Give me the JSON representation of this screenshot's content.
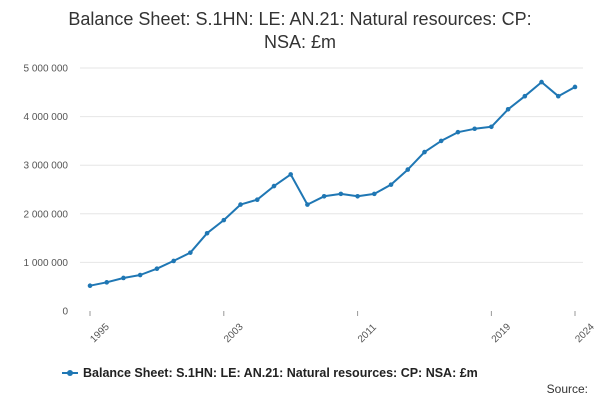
{
  "colors": {
    "series": "#1f77b4",
    "grid": "#e6e6e6"
  },
  "chart_data": {
    "type": "line",
    "title_lines": [
      "Balance Sheet: S.1HN: LE: AN.21: Natural resources: CP:",
      "NSA: £m"
    ],
    "x": [
      1995,
      1996,
      1997,
      1998,
      1999,
      2000,
      2001,
      2002,
      2003,
      2004,
      2005,
      2006,
      2007,
      2008,
      2009,
      2010,
      2011,
      2012,
      2013,
      2014,
      2015,
      2016,
      2017,
      2018,
      2019,
      2020,
      2021,
      2022,
      2023,
      2024
    ],
    "xticks": [
      1995,
      2003,
      2011,
      2019,
      2024
    ],
    "yticks": [
      0,
      1000000,
      2000000,
      3000000,
      4000000,
      5000000
    ],
    "ytick_labels": [
      "0",
      "1 000 000",
      "2 000 000",
      "3 000 000",
      "4 000 000",
      "5 000 000"
    ],
    "ylim": [
      0,
      5000000
    ],
    "grid": true,
    "legend_position": "bottom",
    "series": [
      {
        "name": "Balance Sheet: S.1HN: LE: AN.21: Natural resources: CP: NSA: £m",
        "values": [
          520000,
          590000,
          680000,
          740000,
          870000,
          1030000,
          1200000,
          1600000,
          1870000,
          2190000,
          2290000,
          2570000,
          2810000,
          2190000,
          2360000,
          2410000,
          2360000,
          2410000,
          2600000,
          2910000,
          3270000,
          3500000,
          3680000,
          3750000,
          3790000,
          4150000,
          4420000,
          4710000,
          4420000,
          4610000
        ]
      }
    ]
  },
  "source_label": "Source:"
}
